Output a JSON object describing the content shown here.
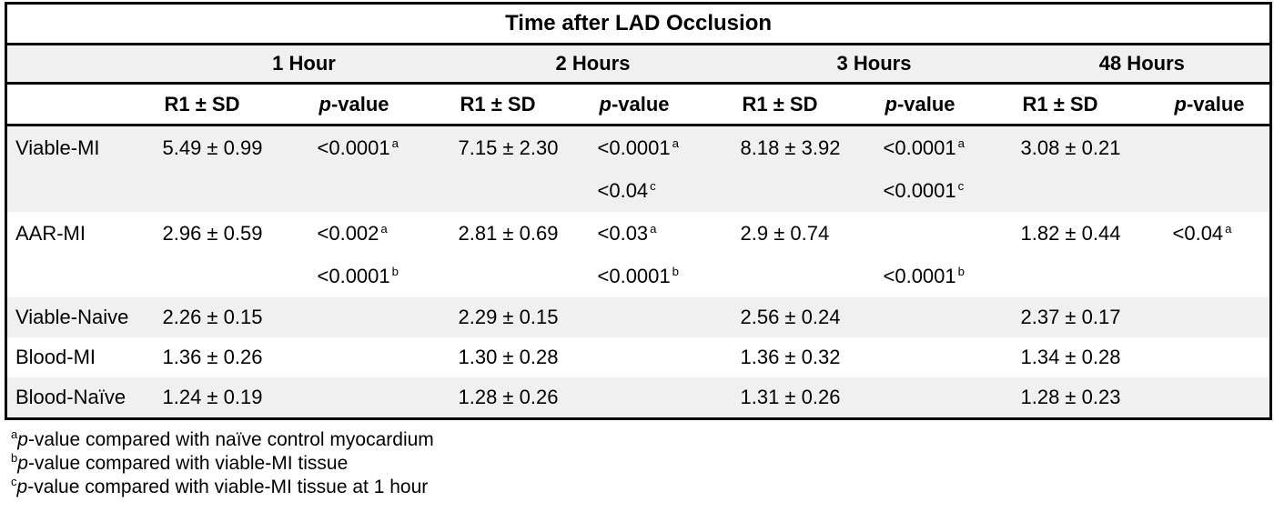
{
  "table": {
    "title": "Time after LAD Occlusion",
    "time_groups": [
      "1 Hour",
      "2 Hours",
      "3 Hours",
      "48 Hours"
    ],
    "col_headers": {
      "r1": "R1 ± SD",
      "p_italic": "p",
      "p_rest": "-value"
    },
    "rows": [
      {
        "label": "Viable-MI",
        "shaded": true,
        "cells": [
          {
            "r1": "5.49 ± 0.99",
            "p_lines": [
              {
                "value": "<0.0001",
                "sup": "a"
              }
            ]
          },
          {
            "r1": "7.15 ± 2.30",
            "p_lines": [
              {
                "value": "<0.0001",
                "sup": "a"
              },
              {
                "value": "<0.04",
                "sup": "c"
              }
            ]
          },
          {
            "r1": "8.18 ± 3.92",
            "p_lines": [
              {
                "value": "<0.0001",
                "sup": "a"
              },
              {
                "value": "<0.0001",
                "sup": "c"
              }
            ]
          },
          {
            "r1": "3.08 ± 0.21",
            "p_lines": []
          }
        ]
      },
      {
        "label": "AAR-MI",
        "shaded": false,
        "cells": [
          {
            "r1": "2.96 ± 0.59",
            "p_lines": [
              {
                "value": "<0.002",
                "sup": "a"
              },
              {
                "value": "<0.0001",
                "sup": "b"
              }
            ]
          },
          {
            "r1": "2.81 ± 0.69",
            "p_lines": [
              {
                "value": "<0.03",
                "sup": "a"
              },
              {
                "value": "<0.0001",
                "sup": "b"
              }
            ]
          },
          {
            "r1": "2.9 ± 0.74",
            "p_lines": [
              {
                "value": "",
                "sup": ""
              },
              {
                "value": "<0.0001",
                "sup": "b"
              }
            ]
          },
          {
            "r1": "1.82 ± 0.44",
            "p_lines": [
              {
                "value": "<0.04",
                "sup": "a"
              }
            ]
          }
        ]
      },
      {
        "label": "Viable-Naive",
        "shaded": true,
        "cells": [
          {
            "r1": "2.26 ± 0.15",
            "p_lines": []
          },
          {
            "r1": "2.29 ± 0.15",
            "p_lines": []
          },
          {
            "r1": "2.56 ± 0.24",
            "p_lines": []
          },
          {
            "r1": "2.37 ± 0.17",
            "p_lines": []
          }
        ]
      },
      {
        "label": "Blood-MI",
        "shaded": false,
        "cells": [
          {
            "r1": "1.36 ± 0.26",
            "p_lines": []
          },
          {
            "r1": "1.30 ± 0.28",
            "p_lines": []
          },
          {
            "r1": "1.36 ± 0.32",
            "p_lines": []
          },
          {
            "r1": "1.34 ± 0.28",
            "p_lines": []
          }
        ]
      },
      {
        "label": "Blood-Naïve",
        "shaded": true,
        "cells": [
          {
            "r1": "1.24 ± 0.19",
            "p_lines": []
          },
          {
            "r1": "1.28 ± 0.26",
            "p_lines": []
          },
          {
            "r1": "1.31 ± 0.26",
            "p_lines": []
          },
          {
            "r1": "1.28 ± 0.23",
            "p_lines": []
          }
        ]
      }
    ],
    "footnotes": [
      {
        "sup": "a",
        "italic": "p",
        "text": "-value compared with naïve control myocardium"
      },
      {
        "sup": "b",
        "italic": "p",
        "text": "-value compared with viable-MI tissue"
      },
      {
        "sup": "c",
        "italic": "p",
        "text": "-value compared with viable-MI tissue at 1 hour"
      }
    ],
    "colors": {
      "shaded_row": "#f0f0f0",
      "border": "#000000",
      "background": "#ffffff",
      "text": "#000000"
    }
  }
}
